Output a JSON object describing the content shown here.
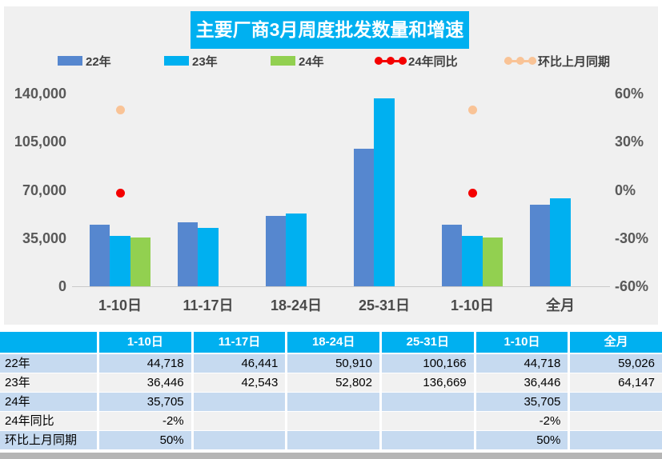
{
  "title": "主要厂商3月周度批发数量和增速",
  "colors": {
    "title_bg": "#00B0F0",
    "panel_bg": "#F0F0F0",
    "bar_22": "#5687CF",
    "bar_23": "#00B0F0",
    "bar_24": "#92D050",
    "dot_yoy": "#F40000",
    "dot_mom": "#F9C396",
    "table_header_bg": "#00B0F0",
    "row_blue": "#C6DAF0",
    "row_gray": "#F1F1F1",
    "axis_text": "#595959",
    "bottom_strip": "#B5B5B5"
  },
  "legend": {
    "items": [
      {
        "label": "22年",
        "type": "bar",
        "color": "#5687CF"
      },
      {
        "label": "23年",
        "type": "bar",
        "color": "#00B0F0"
      },
      {
        "label": "24年",
        "type": "bar",
        "color": "#92D050"
      },
      {
        "label": "24年同比",
        "type": "dots",
        "color": "#F40000"
      },
      {
        "label": "环比上月同期",
        "type": "dots",
        "color": "#F9C396"
      }
    ]
  },
  "chart_data": {
    "type": "bar",
    "categories": [
      "1-10日",
      "11-17日",
      "18-24日",
      "25-31日",
      "1-10日",
      "全月"
    ],
    "series": [
      {
        "name": "22年",
        "type": "bar",
        "axis": "left",
        "color": "#5687CF",
        "values": [
          44718,
          46441,
          50910,
          100166,
          44718,
          59026
        ]
      },
      {
        "name": "23年",
        "type": "bar",
        "axis": "left",
        "color": "#00B0F0",
        "values": [
          36446,
          42543,
          52802,
          136669,
          36446,
          64147
        ]
      },
      {
        "name": "24年",
        "type": "bar",
        "axis": "left",
        "color": "#92D050",
        "values": [
          35705,
          null,
          null,
          null,
          35705,
          null
        ]
      },
      {
        "name": "24年同比",
        "type": "scatter",
        "axis": "right",
        "color": "#F40000",
        "values": [
          -2,
          null,
          null,
          null,
          -2,
          null
        ]
      },
      {
        "name": "环比上月同期",
        "type": "scatter",
        "axis": "right",
        "color": "#F9C396",
        "values": [
          50,
          null,
          null,
          null,
          50,
          null
        ]
      }
    ],
    "title": "主要厂商3月周度批发数量和增速",
    "xlabel": "",
    "ylabel": "",
    "axis_left": {
      "min": 0,
      "max": 140000,
      "ticks": [
        "0",
        "35,000",
        "70,000",
        "105,000",
        "140,000"
      ]
    },
    "axis_right": {
      "min": -60,
      "max": 60,
      "unit": "%",
      "ticks": [
        "-60%",
        "-30%",
        "0%",
        "30%",
        "60%"
      ]
    },
    "grid": false,
    "legend_position": "top"
  },
  "table": {
    "headers": [
      "",
      "1-10日",
      "11-17日",
      "18-24日",
      "25-31日",
      "1-10日",
      "全月"
    ],
    "rows": [
      {
        "label": "22年",
        "cells": [
          "44,718",
          "46,441",
          "50,910",
          "100,166",
          "44,718",
          "59,026"
        ]
      },
      {
        "label": "23年",
        "cells": [
          "36,446",
          "42,543",
          "52,802",
          "136,669",
          "36,446",
          "64,147"
        ]
      },
      {
        "label": "24年",
        "cells": [
          "35,705",
          "",
          "",
          "",
          "35,705",
          ""
        ]
      },
      {
        "label": "24年同比",
        "cells": [
          "-2%",
          "",
          "",
          "",
          "-2%",
          ""
        ]
      },
      {
        "label": "环比上月同期",
        "cells": [
          "50%",
          "",
          "",
          "",
          "50%",
          ""
        ]
      }
    ]
  }
}
